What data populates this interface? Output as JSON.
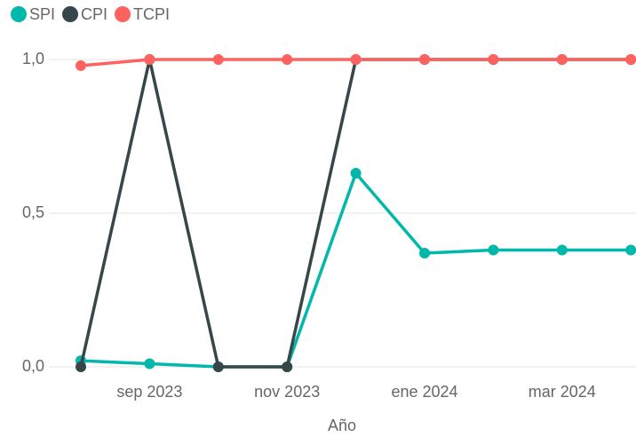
{
  "chart_data": {
    "type": "line",
    "xlabel": "Año",
    "categories": [
      null,
      "sep 2023",
      null,
      "nov 2023",
      null,
      "ene 2024",
      null,
      "mar 2024",
      null
    ],
    "series": [
      {
        "name": "SPI",
        "color": "#01B8AA",
        "values": [
          0.02,
          0.01,
          0,
          0,
          0.63,
          0.37,
          0.38,
          0.38,
          0.38
        ]
      },
      {
        "name": "CPI",
        "color": "#374649",
        "values": [
          0,
          1,
          0,
          0,
          1,
          1,
          1,
          1,
          1
        ]
      },
      {
        "name": "TCPI",
        "color": "#FD625E",
        "values": [
          0.98,
          1,
          1,
          1,
          1,
          1,
          1,
          1,
          1
        ]
      }
    ],
    "ylim": [
      0,
      1
    ],
    "yticks": [
      {
        "value": 0,
        "label": "0,0"
      },
      {
        "value": 0.5,
        "label": "0,5"
      },
      {
        "value": 1,
        "label": "1,0"
      }
    ],
    "grid": true,
    "legend": "top-left"
  }
}
